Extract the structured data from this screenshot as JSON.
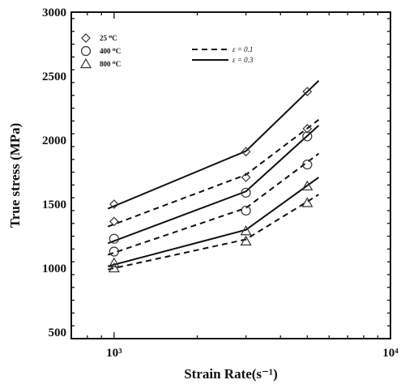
{
  "chart_data": {
    "type": "scatter",
    "xlabel": "Strain Rate(s⁻¹)",
    "ylabel": "True stress (MPa)",
    "xscale": "log",
    "xlim": [
      700,
      10000
    ],
    "ylim": [
      450,
      3000
    ],
    "x_ticks": [
      {
        "value": 1000,
        "label": "10³"
      },
      {
        "value": 10000,
        "label": "10⁴"
      }
    ],
    "y_ticks": [
      {
        "value": 500,
        "label": "500"
      },
      {
        "value": 1000,
        "label": "1000"
      },
      {
        "value": 1500,
        "label": "1500"
      },
      {
        "value": 2000,
        "label": "2000"
      },
      {
        "value": 2500,
        "label": "2500"
      },
      {
        "value": 3000,
        "label": "3000"
      }
    ],
    "grid": false,
    "legend_placement": "top-left",
    "legend_markers": [
      {
        "label": "25 ⁰C",
        "marker": "diamond"
      },
      {
        "label": "400 ⁰C",
        "marker": "circle"
      },
      {
        "label": "800 ⁰C",
        "marker": "triangle"
      }
    ],
    "legend_lines": [
      {
        "label": "ε = 0.1",
        "style": "dashed"
      },
      {
        "label": "ε = 0.3",
        "style": "solid"
      }
    ],
    "series": [
      {
        "temperature": "25 ⁰C",
        "strain": "ε = 0.1",
        "marker": "diamond",
        "line": "dashed",
        "x": [
          1000,
          3000,
          5000
        ],
        "y": [
          1365,
          1710,
          2090
        ],
        "fit_x": [
          950,
          3000,
          5500
        ],
        "fit_y": [
          1325,
          1730,
          2160
        ]
      },
      {
        "temperature": "25 ⁰C",
        "strain": "ε = 0.3",
        "marker": "diamond",
        "line": "solid",
        "x": [
          1000,
          3000,
          5000
        ],
        "y": [
          1500,
          1910,
          2380
        ],
        "fit_x": [
          950,
          3000,
          5500
        ],
        "fit_y": [
          1465,
          1915,
          2465
        ]
      },
      {
        "temperature": "400 ⁰C",
        "strain": "ε = 0.1",
        "marker": "circle",
        "line": "dashed",
        "x": [
          1000,
          3000,
          5000
        ],
        "y": [
          1130,
          1450,
          1810
        ],
        "fit_x": [
          950,
          3000,
          5500
        ],
        "fit_y": [
          1105,
          1470,
          1895
        ]
      },
      {
        "temperature": "400 ⁰C",
        "strain": "ε = 0.3",
        "marker": "circle",
        "line": "solid",
        "x": [
          1000,
          3000,
          5000
        ],
        "y": [
          1230,
          1590,
          2030
        ],
        "fit_x": [
          950,
          3000,
          5500
        ],
        "fit_y": [
          1195,
          1600,
          2115
        ]
      },
      {
        "temperature": "800 ⁰C",
        "strain": "ε = 0.1",
        "marker": "triangle",
        "line": "dashed",
        "x": [
          1000,
          3000,
          5000
        ],
        "y": [
          1000,
          1210,
          1510
        ],
        "fit_x": [
          950,
          3000,
          5500
        ],
        "fit_y": [
          990,
          1225,
          1575
        ]
      },
      {
        "temperature": "800 ⁰C",
        "strain": "ε = 0.3",
        "marker": "triangle",
        "line": "solid",
        "x": [
          1000,
          3000,
          5000
        ],
        "y": [
          1040,
          1290,
          1640
        ],
        "fit_x": [
          950,
          3000,
          5500
        ],
        "fit_y": [
          1015,
          1300,
          1710
        ]
      }
    ]
  }
}
